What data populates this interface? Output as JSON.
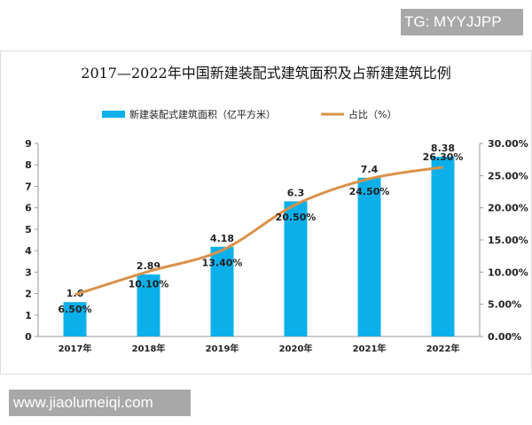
{
  "watermark_top": "TG: MYYJJPP",
  "watermark_bottom": "www.jiaolumeiqi.com",
  "chart_data": {
    "type": "bar+line",
    "title": "2017—2022年中国新建装配式建筑面积及占新建建筑比例",
    "categories": [
      "2017年",
      "2018年",
      "2019年",
      "2020年",
      "2021年",
      "2022年"
    ],
    "series": [
      {
        "name": "新建装配式建筑面积（亿平方米）",
        "type": "bar",
        "axis": "left",
        "color": "#0bb0ea",
        "values": [
          1.6,
          2.89,
          4.18,
          6.3,
          7.4,
          8.38
        ],
        "labels": [
          "1.6",
          "2.89",
          "4.18",
          "6.3",
          "7.4",
          "8.38"
        ]
      },
      {
        "name": "占比（%）",
        "type": "line",
        "axis": "right",
        "color": "#d9924a",
        "values": [
          6.5,
          10.1,
          13.4,
          20.5,
          24.5,
          26.3
        ],
        "labels": [
          "6.50%",
          "10.10%",
          "13.40%",
          "20.50%",
          "24.50%",
          "26.30%"
        ]
      }
    ],
    "left_axis": {
      "range": [
        0,
        9
      ],
      "ticks": [
        "0",
        "1",
        "2",
        "3",
        "4",
        "5",
        "6",
        "7",
        "8",
        "9"
      ]
    },
    "right_axis": {
      "range": [
        0,
        30
      ],
      "ticks": [
        "0.00%",
        "5.00%",
        "10.00%",
        "15.00%",
        "20.00%",
        "25.00%",
        "30.00%"
      ]
    },
    "legend": "top-center",
    "grid": false
  }
}
